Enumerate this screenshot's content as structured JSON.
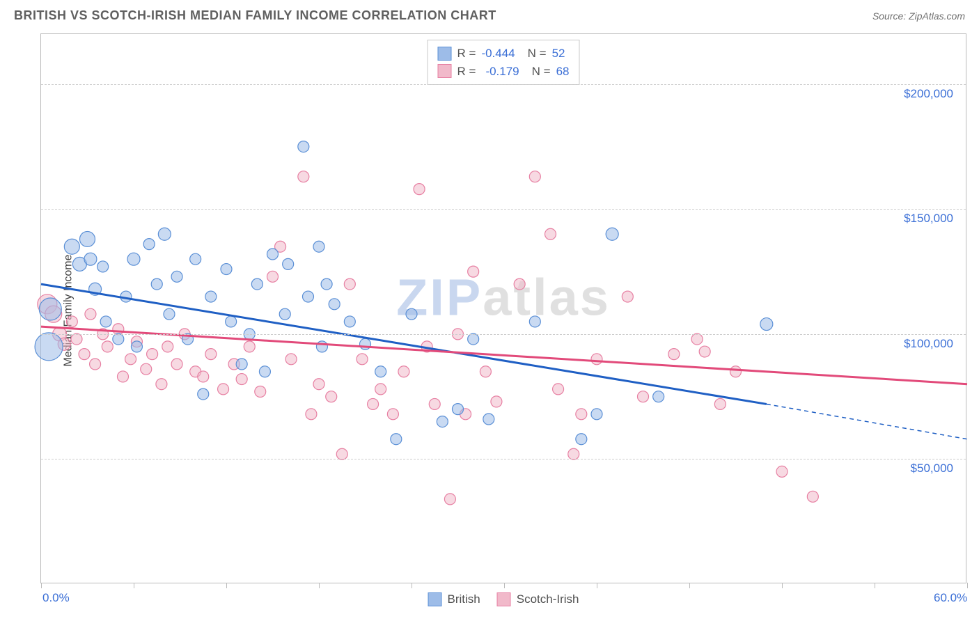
{
  "header": {
    "title": "BRITISH VS SCOTCH-IRISH MEDIAN FAMILY INCOME CORRELATION CHART",
    "source_label": "Source: ",
    "source_name": "ZipAtlas.com"
  },
  "watermark": {
    "part1": "ZIP",
    "part2": "atlas"
  },
  "chart": {
    "type": "scatter",
    "ylabel": "Median Family Income",
    "xlim": [
      0,
      60
    ],
    "ylim": [
      0,
      220000
    ],
    "x_tick_positions": [
      0,
      6,
      12,
      18,
      24,
      30,
      36,
      42,
      48,
      54,
      60
    ],
    "x_tick_labels": {
      "0": "0.0%",
      "60": "60.0%"
    },
    "y_gridlines": [
      50000,
      100000,
      150000,
      200000
    ],
    "y_tick_labels": {
      "50000": "$50,000",
      "100000": "$100,000",
      "150000": "$150,000",
      "200000": "$200,000"
    },
    "background_color": "#ffffff",
    "grid_color": "#cccccc",
    "axis_color": "#bbbbbb",
    "label_fontsize": 16,
    "tick_color": "#3b6fd6",
    "tick_fontsize": 17
  },
  "series": {
    "british": {
      "label": "British",
      "color_fill": "#9dbce8",
      "color_stroke": "#5a8fd6",
      "fill_opacity": 0.55,
      "marker_r_default": 8,
      "trend": {
        "x0": 0,
        "y0": 120000,
        "x1": 47,
        "y1": 72000,
        "dash_x1": 60,
        "dash_y1": 58000,
        "color": "#1f5fc4",
        "width": 3
      },
      "stats": {
        "R": "-0.444",
        "N": "52"
      },
      "points": [
        {
          "x": 0.5,
          "y": 95000,
          "r": 20
        },
        {
          "x": 0.6,
          "y": 110000,
          "r": 16
        },
        {
          "x": 2,
          "y": 135000,
          "r": 11
        },
        {
          "x": 2.5,
          "y": 128000,
          "r": 10
        },
        {
          "x": 3,
          "y": 138000,
          "r": 11
        },
        {
          "x": 3.2,
          "y": 130000,
          "r": 9
        },
        {
          "x": 3.5,
          "y": 118000,
          "r": 9
        },
        {
          "x": 4,
          "y": 127000,
          "r": 8
        },
        {
          "x": 4.2,
          "y": 105000,
          "r": 8
        },
        {
          "x": 5,
          "y": 98000,
          "r": 8
        },
        {
          "x": 5.5,
          "y": 115000,
          "r": 8
        },
        {
          "x": 6,
          "y": 130000,
          "r": 9
        },
        {
          "x": 6.2,
          "y": 95000,
          "r": 8
        },
        {
          "x": 7,
          "y": 136000,
          "r": 8
        },
        {
          "x": 7.5,
          "y": 120000,
          "r": 8
        },
        {
          "x": 8,
          "y": 140000,
          "r": 9
        },
        {
          "x": 8.3,
          "y": 108000,
          "r": 8
        },
        {
          "x": 8.8,
          "y": 123000,
          "r": 8
        },
        {
          "x": 9.5,
          "y": 98000,
          "r": 8
        },
        {
          "x": 10,
          "y": 130000,
          "r": 8
        },
        {
          "x": 10.5,
          "y": 76000,
          "r": 8
        },
        {
          "x": 11,
          "y": 115000,
          "r": 8
        },
        {
          "x": 12,
          "y": 126000,
          "r": 8
        },
        {
          "x": 12.3,
          "y": 105000,
          "r": 8
        },
        {
          "x": 13,
          "y": 88000,
          "r": 8
        },
        {
          "x": 13.5,
          "y": 100000,
          "r": 8
        },
        {
          "x": 14,
          "y": 120000,
          "r": 8
        },
        {
          "x": 14.5,
          "y": 85000,
          "r": 8
        },
        {
          "x": 15,
          "y": 132000,
          "r": 8
        },
        {
          "x": 15.8,
          "y": 108000,
          "r": 8
        },
        {
          "x": 16,
          "y": 128000,
          "r": 8
        },
        {
          "x": 17,
          "y": 175000,
          "r": 8
        },
        {
          "x": 17.3,
          "y": 115000,
          "r": 8
        },
        {
          "x": 18,
          "y": 135000,
          "r": 8
        },
        {
          "x": 18.2,
          "y": 95000,
          "r": 8
        },
        {
          "x": 18.5,
          "y": 120000,
          "r": 8
        },
        {
          "x": 19,
          "y": 112000,
          "r": 8
        },
        {
          "x": 20,
          "y": 105000,
          "r": 8
        },
        {
          "x": 21,
          "y": 96000,
          "r": 8
        },
        {
          "x": 22,
          "y": 85000,
          "r": 8
        },
        {
          "x": 23,
          "y": 58000,
          "r": 8
        },
        {
          "x": 24,
          "y": 108000,
          "r": 8
        },
        {
          "x": 26,
          "y": 65000,
          "r": 8
        },
        {
          "x": 27,
          "y": 70000,
          "r": 8
        },
        {
          "x": 28,
          "y": 98000,
          "r": 8
        },
        {
          "x": 29,
          "y": 66000,
          "r": 8
        },
        {
          "x": 32,
          "y": 105000,
          "r": 8
        },
        {
          "x": 35,
          "y": 58000,
          "r": 8
        },
        {
          "x": 37,
          "y": 140000,
          "r": 9
        },
        {
          "x": 40,
          "y": 75000,
          "r": 8
        },
        {
          "x": 47,
          "y": 104000,
          "r": 9
        },
        {
          "x": 36,
          "y": 68000,
          "r": 8
        }
      ]
    },
    "scotch_irish": {
      "label": "Scotch-Irish",
      "color_fill": "#f1b9ca",
      "color_stroke": "#e77fa2",
      "fill_opacity": 0.55,
      "marker_r_default": 8,
      "trend": {
        "x0": 0,
        "y0": 103000,
        "x1": 60,
        "y1": 80000,
        "color": "#e24a7a",
        "width": 3
      },
      "stats": {
        "R": "-0.179",
        "N": "68"
      },
      "points": [
        {
          "x": 0.4,
          "y": 112000,
          "r": 14
        },
        {
          "x": 0.8,
          "y": 108000,
          "r": 12
        },
        {
          "x": 1.2,
          "y": 100000,
          "r": 10
        },
        {
          "x": 1.5,
          "y": 96000,
          "r": 9
        },
        {
          "x": 2,
          "y": 105000,
          "r": 8
        },
        {
          "x": 2.3,
          "y": 98000,
          "r": 8
        },
        {
          "x": 2.8,
          "y": 92000,
          "r": 8
        },
        {
          "x": 3.2,
          "y": 108000,
          "r": 8
        },
        {
          "x": 3.5,
          "y": 88000,
          "r": 8
        },
        {
          "x": 4,
          "y": 100000,
          "r": 8
        },
        {
          "x": 4.3,
          "y": 95000,
          "r": 8
        },
        {
          "x": 5,
          "y": 102000,
          "r": 8
        },
        {
          "x": 5.3,
          "y": 83000,
          "r": 8
        },
        {
          "x": 5.8,
          "y": 90000,
          "r": 8
        },
        {
          "x": 6.2,
          "y": 97000,
          "r": 8
        },
        {
          "x": 6.8,
          "y": 86000,
          "r": 8
        },
        {
          "x": 7.2,
          "y": 92000,
          "r": 8
        },
        {
          "x": 7.8,
          "y": 80000,
          "r": 8
        },
        {
          "x": 8.2,
          "y": 95000,
          "r": 8
        },
        {
          "x": 8.8,
          "y": 88000,
          "r": 8
        },
        {
          "x": 9.3,
          "y": 100000,
          "r": 8
        },
        {
          "x": 10,
          "y": 85000,
          "r": 8
        },
        {
          "x": 10.5,
          "y": 83000,
          "r": 8
        },
        {
          "x": 11,
          "y": 92000,
          "r": 8
        },
        {
          "x": 11.8,
          "y": 78000,
          "r": 8
        },
        {
          "x": 12.5,
          "y": 88000,
          "r": 8
        },
        {
          "x": 13,
          "y": 82000,
          "r": 8
        },
        {
          "x": 13.5,
          "y": 95000,
          "r": 8
        },
        {
          "x": 14.2,
          "y": 77000,
          "r": 8
        },
        {
          "x": 15,
          "y": 123000,
          "r": 8
        },
        {
          "x": 15.5,
          "y": 135000,
          "r": 8
        },
        {
          "x": 16.2,
          "y": 90000,
          "r": 8
        },
        {
          "x": 17,
          "y": 163000,
          "r": 8
        },
        {
          "x": 17.5,
          "y": 68000,
          "r": 8
        },
        {
          "x": 18,
          "y": 80000,
          "r": 8
        },
        {
          "x": 18.8,
          "y": 75000,
          "r": 8
        },
        {
          "x": 19.5,
          "y": 52000,
          "r": 8
        },
        {
          "x": 20,
          "y": 120000,
          "r": 8
        },
        {
          "x": 20.8,
          "y": 90000,
          "r": 8
        },
        {
          "x": 21.5,
          "y": 72000,
          "r": 8
        },
        {
          "x": 22,
          "y": 78000,
          "r": 8
        },
        {
          "x": 22.8,
          "y": 68000,
          "r": 8
        },
        {
          "x": 23.5,
          "y": 85000,
          "r": 8
        },
        {
          "x": 24.5,
          "y": 158000,
          "r": 8
        },
        {
          "x": 25,
          "y": 95000,
          "r": 8
        },
        {
          "x": 25.5,
          "y": 72000,
          "r": 8
        },
        {
          "x": 26.5,
          "y": 34000,
          "r": 8
        },
        {
          "x": 27,
          "y": 100000,
          "r": 8
        },
        {
          "x": 27.5,
          "y": 68000,
          "r": 8
        },
        {
          "x": 28,
          "y": 125000,
          "r": 8
        },
        {
          "x": 28.8,
          "y": 85000,
          "r": 8
        },
        {
          "x": 29.5,
          "y": 73000,
          "r": 8
        },
        {
          "x": 31,
          "y": 120000,
          "r": 8
        },
        {
          "x": 32,
          "y": 163000,
          "r": 8
        },
        {
          "x": 33,
          "y": 140000,
          "r": 8
        },
        {
          "x": 33.5,
          "y": 78000,
          "r": 8
        },
        {
          "x": 34.5,
          "y": 52000,
          "r": 8
        },
        {
          "x": 35,
          "y": 68000,
          "r": 8
        },
        {
          "x": 36,
          "y": 90000,
          "r": 8
        },
        {
          "x": 38,
          "y": 115000,
          "r": 8
        },
        {
          "x": 39,
          "y": 75000,
          "r": 8
        },
        {
          "x": 41,
          "y": 92000,
          "r": 8
        },
        {
          "x": 42.5,
          "y": 98000,
          "r": 8
        },
        {
          "x": 43,
          "y": 93000,
          "r": 8
        },
        {
          "x": 44,
          "y": 72000,
          "r": 8
        },
        {
          "x": 45,
          "y": 85000,
          "r": 8
        },
        {
          "x": 48,
          "y": 45000,
          "r": 8
        },
        {
          "x": 50,
          "y": 35000,
          "r": 8
        }
      ]
    }
  },
  "stats_legend": {
    "r_label": "R =",
    "n_label": "N ="
  }
}
